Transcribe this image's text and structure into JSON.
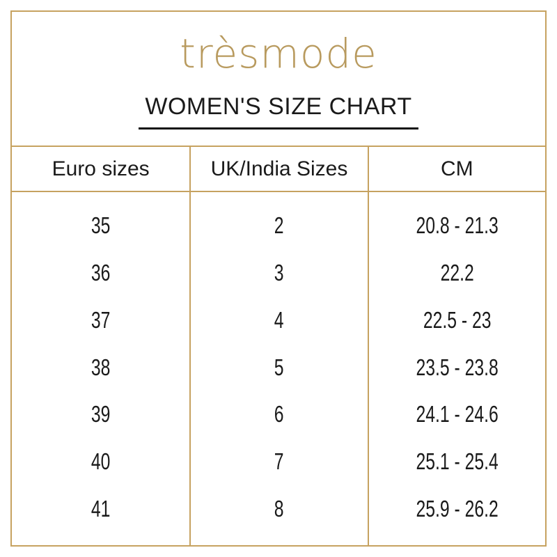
{
  "brand": {
    "logo_text": "trèsmode"
  },
  "header": {
    "title": "WOMEN'S SIZE CHART"
  },
  "table": {
    "headers": [
      "Euro sizes",
      "UK/India Sizes",
      "CM"
    ],
    "rows": [
      [
        "35",
        "2",
        "20.8 - 21.3"
      ],
      [
        "36",
        "3",
        "22.2"
      ],
      [
        "37",
        "4",
        "22.5 - 23"
      ],
      [
        "38",
        "5",
        "23.5 - 23.8"
      ],
      [
        "39",
        "6",
        "24.1 - 24.6"
      ],
      [
        "40",
        "7",
        "25.1 - 25.4"
      ],
      [
        "41",
        "8",
        "25.9 - 26.2"
      ]
    ]
  },
  "colors": {
    "border_gold": "#c6a260",
    "logo_gold": "#b89a5e",
    "ink": "#1a1a1a"
  }
}
